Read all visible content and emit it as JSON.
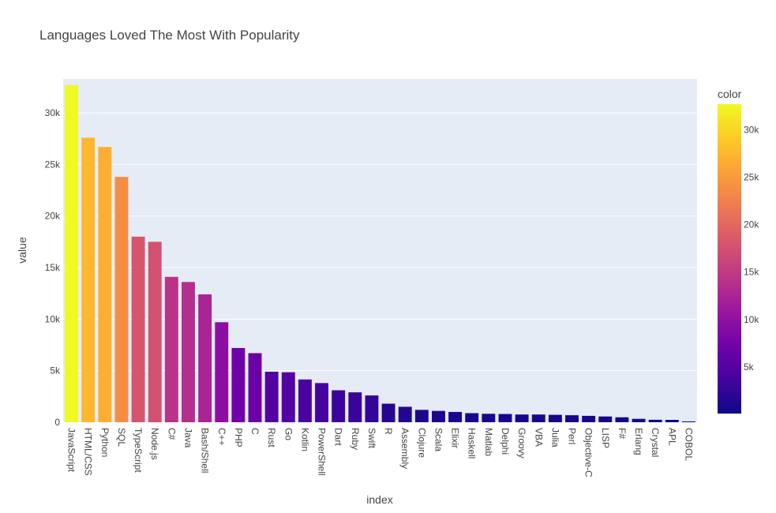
{
  "chart_data": {
    "type": "bar",
    "title": "Languages Loved The Most With Popularity",
    "xlabel": "index",
    "ylabel": "value",
    "ylim": [
      0,
      33300
    ],
    "y_ticks": [
      0,
      5000,
      10000,
      15000,
      20000,
      25000,
      30000
    ],
    "y_tick_labels": [
      "0",
      "5k",
      "10k",
      "15k",
      "20k",
      "25k",
      "30k"
    ],
    "categories": [
      "JavaScript",
      "HTML/CSS",
      "Python",
      "SQL",
      "TypeScript",
      "Node.js",
      "C#",
      "Java",
      "Bash/Shell",
      "C++",
      "PHP",
      "C",
      "Rust",
      "Go",
      "Kotlin",
      "PowerShell",
      "Dart",
      "Ruby",
      "Swift",
      "R",
      "Assembly",
      "Clojure",
      "Scala",
      "Elixir",
      "Haskell",
      "Matlab",
      "Delphi",
      "Groovy",
      "VBA",
      "Julia",
      "Perl",
      "Objective-C",
      "LISP",
      "F#",
      "Erlang",
      "Crystal",
      "APL",
      "COBOL"
    ],
    "values": [
      32700,
      27600,
      26700,
      23800,
      18000,
      17500,
      14100,
      13600,
      12400,
      9700,
      7200,
      6700,
      4900,
      4850,
      4150,
      3800,
      3100,
      2900,
      2600,
      1800,
      1500,
      1200,
      1100,
      1000,
      880,
      820,
      800,
      750,
      750,
      720,
      680,
      620,
      560,
      480,
      330,
      240,
      230,
      80
    ],
    "colorbar": {
      "title": "color",
      "ticks": [
        5000,
        10000,
        15000,
        20000,
        25000,
        30000
      ],
      "tick_labels": [
        "5k",
        "10k",
        "15k",
        "20k",
        "25k",
        "30k"
      ],
      "min": 80,
      "max": 32700,
      "colorscale": [
        "#0d0887",
        "#46039f",
        "#7201a8",
        "#9c179e",
        "#bd3786",
        "#d8576b",
        "#ed7953",
        "#fb9f3a",
        "#fdca26",
        "#f0f921"
      ]
    },
    "grid": true,
    "legend": "none"
  }
}
